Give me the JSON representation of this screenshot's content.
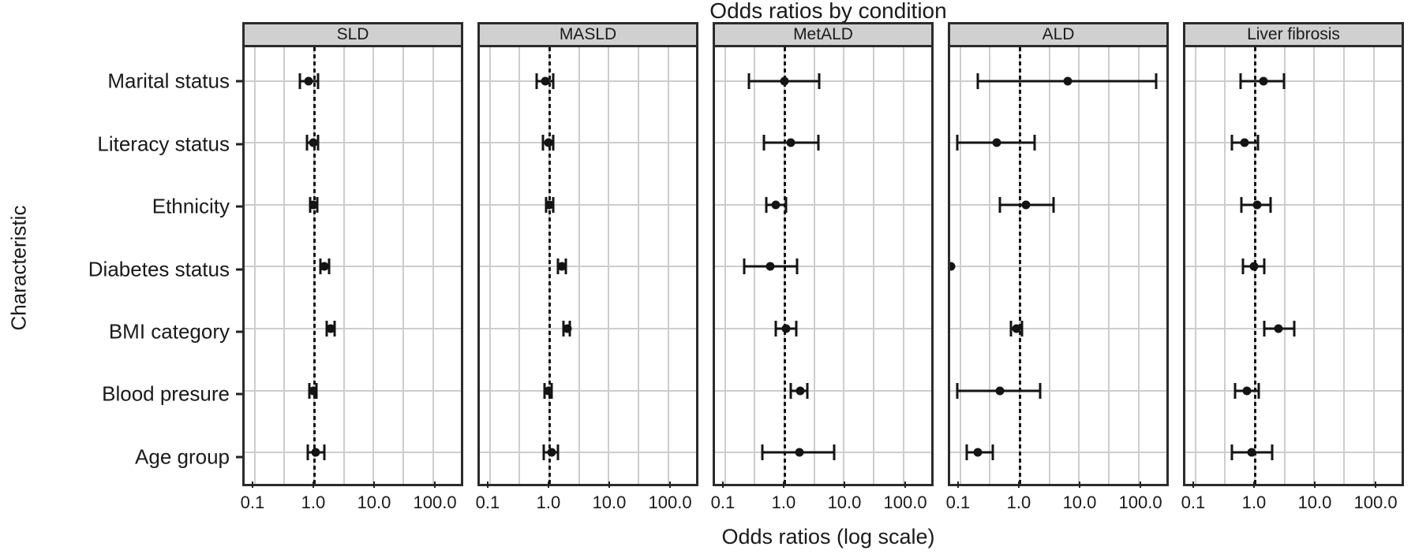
{
  "title": "Odds ratios by condition",
  "x_axis_label": "Odds ratios (log scale)",
  "y_axis_label": "Characteristic",
  "colors": {
    "background": "#ffffff",
    "panel_header_fill": "#d0d0d0",
    "panel_border": "#2b2b2b",
    "gridline": "#cdcdcd",
    "data": "#141414",
    "text": "#1a1a1a"
  },
  "chart_data": {
    "type": "scatter",
    "subtype": "forest-plot",
    "log_scale": true,
    "title": "Odds ratios by condition",
    "xlabel": "Odds ratios (log scale)",
    "ylabel": "Characteristic",
    "x_domain": [
      0.068,
      293
    ],
    "x_ticks": [
      0.1,
      1.0,
      10.0,
      100.0
    ],
    "x_tick_labels": [
      "0.1",
      "1.0",
      "10.0",
      "100.0"
    ],
    "x_gridlines": [
      0.1,
      0.316,
      1,
      3.16,
      10,
      31.6,
      100
    ],
    "reference_line": 1.0,
    "grid": "on",
    "categories": [
      "Marital status",
      "Literacy status",
      "Ethnicity",
      "Diabetes status",
      "BMI category",
      "Blood presure",
      "Age group"
    ],
    "panels": [
      {
        "label": "SLD",
        "points": [
          {
            "or": 0.81,
            "lo": 0.58,
            "hi": 1.16
          },
          {
            "or": 0.97,
            "lo": 0.76,
            "hi": 1.16
          },
          {
            "or": 0.97,
            "lo": 0.86,
            "hi": 1.13
          },
          {
            "or": 1.47,
            "lo": 1.27,
            "hi": 1.76
          },
          {
            "or": 1.87,
            "lo": 1.61,
            "hi": 2.18
          },
          {
            "or": 0.97,
            "lo": 0.84,
            "hi": 1.09
          },
          {
            "or": 1.06,
            "lo": 0.79,
            "hi": 1.47
          }
        ]
      },
      {
        "label": "MASLD",
        "points": [
          {
            "or": 0.85,
            "lo": 0.62,
            "hi": 1.16
          },
          {
            "or": 0.97,
            "lo": 0.78,
            "hi": 1.16
          },
          {
            "or": 1.0,
            "lo": 0.89,
            "hi": 1.16
          },
          {
            "or": 1.61,
            "lo": 1.39,
            "hi": 1.87
          },
          {
            "or": 1.99,
            "lo": 1.71,
            "hi": 2.24
          },
          {
            "or": 0.96,
            "lo": 0.84,
            "hi": 1.09
          },
          {
            "or": 1.08,
            "lo": 0.81,
            "hi": 1.39
          }
        ]
      },
      {
        "label": "MetALD",
        "points": [
          {
            "or": 1.0,
            "lo": 0.25,
            "hi": 3.8
          },
          {
            "or": 1.27,
            "lo": 0.45,
            "hi": 3.7
          },
          {
            "or": 0.72,
            "lo": 0.5,
            "hi": 1.06
          },
          {
            "or": 0.58,
            "lo": 0.21,
            "hi": 1.61
          },
          {
            "or": 1.06,
            "lo": 0.72,
            "hi": 1.57
          },
          {
            "or": 1.82,
            "lo": 1.27,
            "hi": 2.45
          },
          {
            "or": 1.76,
            "lo": 0.43,
            "hi": 6.8
          }
        ]
      },
      {
        "label": "ALD",
        "points": [
          {
            "or": 6.4,
            "lo": 0.2,
            "hi": 200
          },
          {
            "or": 0.41,
            "lo": 0.09,
            "hi": 1.76
          },
          {
            "or": 1.27,
            "lo": 0.46,
            "hi": 3.7
          },
          {
            "or": 0.07,
            "lo": null,
            "hi": null,
            "clipped": true
          },
          {
            "or": 0.89,
            "lo": 0.72,
            "hi": 1.09
          },
          {
            "or": 0.46,
            "lo": 0.09,
            "hi": 2.18
          },
          {
            "or": 0.2,
            "lo": 0.13,
            "hi": 0.35
          }
        ]
      },
      {
        "label": "Liver fibrosis",
        "points": [
          {
            "or": 1.39,
            "lo": 0.58,
            "hi": 3.1
          },
          {
            "or": 0.68,
            "lo": 0.41,
            "hi": 1.13
          },
          {
            "or": 1.09,
            "lo": 0.6,
            "hi": 1.82
          },
          {
            "or": 0.97,
            "lo": 0.64,
            "hi": 1.43
          },
          {
            "or": 2.53,
            "lo": 1.43,
            "hi": 4.6
          },
          {
            "or": 0.74,
            "lo": 0.47,
            "hi": 1.16
          },
          {
            "or": 0.89,
            "lo": 0.41,
            "hi": 1.93
          }
        ]
      }
    ]
  }
}
